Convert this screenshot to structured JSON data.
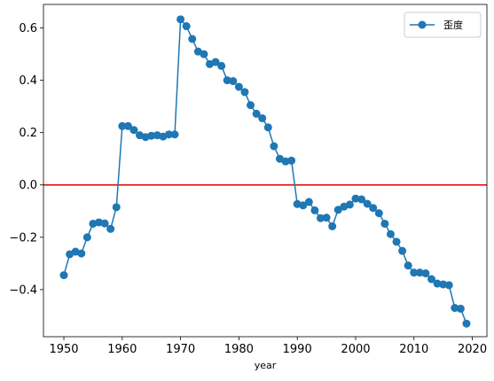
{
  "chart_data": {
    "type": "line",
    "xlabel": "year",
    "ylabel": "",
    "xlim": [
      1946.5,
      2022.5
    ],
    "ylim": [
      -0.58,
      0.69
    ],
    "x_ticks": [
      1950,
      1960,
      1970,
      1980,
      1990,
      2000,
      2010,
      2020
    ],
    "y_ticks": [
      -0.4,
      -0.2,
      0.0,
      0.2,
      0.4,
      0.6
    ],
    "y_tick_labels": [
      "−0.4",
      "−0.2",
      "0.0",
      "0.2",
      "0.4",
      "0.6"
    ],
    "legend_position": "top-right",
    "grid": false,
    "reference_line": {
      "y": 0.0,
      "color": "#e00000"
    },
    "series": [
      {
        "name": "歪度",
        "color": "#1f77b4",
        "marker": "circle",
        "x": [
          1950,
          1951,
          1952,
          1953,
          1954,
          1955,
          1956,
          1957,
          1958,
          1959,
          1960,
          1961,
          1962,
          1963,
          1964,
          1965,
          1966,
          1967,
          1968,
          1969,
          1970,
          1971,
          1972,
          1973,
          1974,
          1975,
          1976,
          1977,
          1978,
          1979,
          1980,
          1981,
          1982,
          1983,
          1984,
          1985,
          1986,
          1987,
          1988,
          1989,
          1990,
          1991,
          1992,
          1993,
          1994,
          1995,
          1996,
          1997,
          1998,
          1999,
          2000,
          2001,
          2002,
          2003,
          2004,
          2005,
          2006,
          2007,
          2008,
          2009,
          2010,
          2011,
          2012,
          2013,
          2014,
          2015,
          2016,
          2017,
          2018,
          2019
        ],
        "y": [
          -0.345,
          -0.265,
          -0.255,
          -0.262,
          -0.2,
          -0.148,
          -0.143,
          -0.147,
          -0.168,
          -0.085,
          0.225,
          0.225,
          0.21,
          0.19,
          0.183,
          0.188,
          0.19,
          0.185,
          0.193,
          0.193,
          0.633,
          0.607,
          0.558,
          0.51,
          0.5,
          0.462,
          0.47,
          0.455,
          0.4,
          0.397,
          0.375,
          0.355,
          0.305,
          0.272,
          0.255,
          0.22,
          0.148,
          0.1,
          0.09,
          0.093,
          -0.073,
          -0.078,
          -0.065,
          -0.097,
          -0.127,
          -0.125,
          -0.158,
          -0.095,
          -0.083,
          -0.075,
          -0.052,
          -0.055,
          -0.072,
          -0.088,
          -0.108,
          -0.148,
          -0.188,
          -0.217,
          -0.252,
          -0.308,
          -0.335,
          -0.335,
          -0.338,
          -0.36,
          -0.377,
          -0.38,
          -0.383,
          -0.47,
          -0.473,
          -0.53
        ]
      }
    ]
  }
}
